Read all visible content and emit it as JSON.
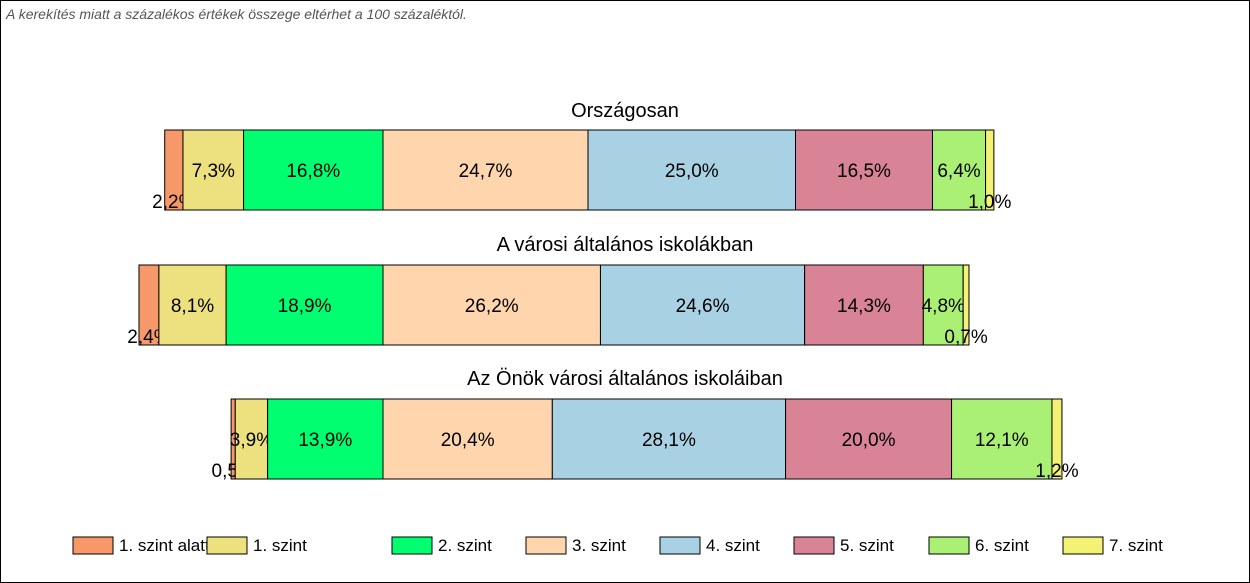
{
  "note": "A kerekítés miatt a  százalékos értékek összege eltérhet a 100 százaléktól.",
  "chart_data": {
    "type": "bar",
    "orientation": "horizontal-stacked",
    "grid": false,
    "legend_position": "bottom",
    "legend": [
      "1. szint alatti",
      "1. szint",
      "2. szint",
      "3. szint",
      "4. szint",
      "5. szint",
      "6. szint",
      "7. szint"
    ],
    "colors": [
      "#f7986b",
      "#ece17e",
      "#00ff70",
      "#ffd5ae",
      "#a8d2e4",
      "#d88396",
      "#aaf074",
      "#f3f274"
    ],
    "bars": [
      {
        "title": "Országosan",
        "values": [
          2.2,
          7.3,
          16.8,
          24.7,
          25.0,
          16.5,
          6.4,
          1.0
        ],
        "labels": [
          "2,2%",
          "7,3%",
          "16,8%",
          "24,7%",
          "25,0%",
          "16,5%",
          "6,4%",
          "1,0%"
        ]
      },
      {
        "title": "A városi általános iskolákban",
        "values": [
          2.4,
          8.1,
          18.9,
          26.2,
          24.6,
          14.3,
          4.8,
          0.7
        ],
        "labels": [
          "2,4%",
          "8,1%",
          "18,9%",
          "26,2%",
          "24,6%",
          "14,3%",
          "4,8%",
          "0,7%"
        ]
      },
      {
        "title": "Az Önök városi általános iskoláiban",
        "values": [
          0.5,
          3.9,
          13.9,
          20.4,
          28.1,
          20.0,
          12.1,
          1.2
        ],
        "labels": [
          "0,5%",
          "3,9%",
          "13,9%",
          "20,4%",
          "28,1%",
          "20,0%",
          "12,1%",
          "1,2%"
        ]
      }
    ]
  }
}
